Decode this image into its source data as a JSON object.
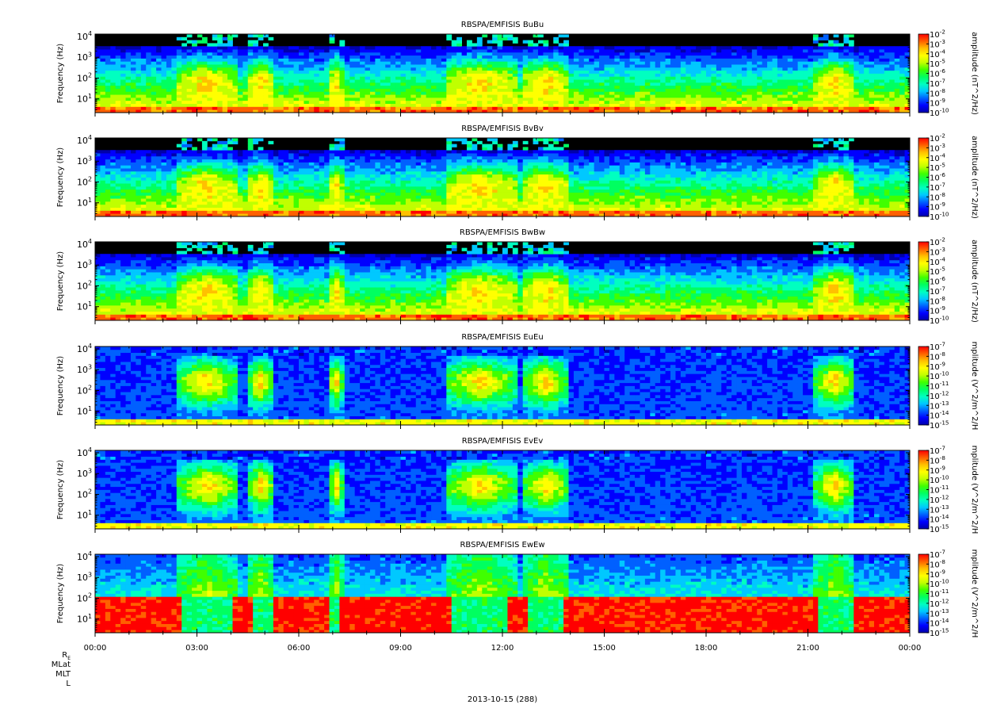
{
  "figure": {
    "footer_labels": [
      "R_E",
      "MLat",
      "MLT",
      "L"
    ],
    "date_label": "2013-10-15 (288)"
  },
  "colors": {
    "colormap": [
      "#0000aa",
      "#0000ff",
      "#0060ff",
      "#00c8ff",
      "#00ffc0",
      "#00ff60",
      "#40ff00",
      "#c0ff00",
      "#ffff00",
      "#ffc000",
      "#ff6000",
      "#ff0000"
    ],
    "background": "#000000"
  },
  "chart_data": [
    {
      "type": "heatmap",
      "title": "RBSPA/EMFISIS  BuBu",
      "ylabel": "Frequency (Hz)",
      "yscale": "log",
      "ylim": [
        2.2,
        13000
      ],
      "yticks": [
        "10^1",
        "10^2",
        "10^3",
        "10^4"
      ],
      "x_ticks": [
        "00:00",
        "03:00",
        "06:00",
        "09:00",
        "12:00",
        "15:00",
        "18:00",
        "21:00",
        "00:00"
      ],
      "colorbar": {
        "label": "amplitude (nT^2/Hz)",
        "scale": "log",
        "ticks": [
          "10^-2",
          "10^-3",
          "10^-4",
          "10^-5",
          "10^-6",
          "10^-7",
          "10^-8",
          "10^-9",
          "10^-10"
        ]
      }
    },
    {
      "type": "heatmap",
      "title": "RBSPA/EMFISIS  BvBv",
      "ylabel": "Frequency (Hz)",
      "yscale": "log",
      "ylim": [
        2.2,
        13000
      ],
      "yticks": [
        "10^1",
        "10^2",
        "10^3",
        "10^4"
      ],
      "x_ticks": [
        "00:00",
        "03:00",
        "06:00",
        "09:00",
        "12:00",
        "15:00",
        "18:00",
        "21:00",
        "00:00"
      ],
      "colorbar": {
        "label": "amplitude (nT^2/Hz)",
        "scale": "log",
        "ticks": [
          "10^-2",
          "10^-3",
          "10^-4",
          "10^-5",
          "10^-6",
          "10^-7",
          "10^-8",
          "10^-9",
          "10^-10"
        ]
      }
    },
    {
      "type": "heatmap",
      "title": "RBSPA/EMFISIS  BwBw",
      "ylabel": "Frequency (Hz)",
      "yscale": "log",
      "ylim": [
        2.2,
        13000
      ],
      "yticks": [
        "10^1",
        "10^2",
        "10^3",
        "10^4"
      ],
      "x_ticks": [
        "00:00",
        "03:00",
        "06:00",
        "09:00",
        "12:00",
        "15:00",
        "18:00",
        "21:00",
        "00:00"
      ],
      "colorbar": {
        "label": "amplitude (nT^2/Hz)",
        "scale": "log",
        "ticks": [
          "10^-2",
          "10^-3",
          "10^-4",
          "10^-5",
          "10^-6",
          "10^-7",
          "10^-8",
          "10^-9",
          "10^-10"
        ]
      }
    },
    {
      "type": "heatmap",
      "title": "RBSPA/EMFISIS  EuEu",
      "ylabel": "Frequency (Hz)",
      "yscale": "log",
      "ylim": [
        2.2,
        13000
      ],
      "yticks": [
        "10^1",
        "10^2",
        "10^3",
        "10^4"
      ],
      "x_ticks": [
        "00:00",
        "03:00",
        "06:00",
        "09:00",
        "12:00",
        "15:00",
        "18:00",
        "21:00",
        "00:00"
      ],
      "colorbar": {
        "label": "mplitude (V^2/m^2/H",
        "scale": "log",
        "ticks": [
          "10^-7",
          "10^-8",
          "10^-9",
          "10^-10",
          "10^-11",
          "10^-12",
          "10^-13",
          "10^-14",
          "10^-15"
        ]
      }
    },
    {
      "type": "heatmap",
      "title": "RBSPA/EMFISIS  EvEv",
      "ylabel": "Frequency (Hz)",
      "yscale": "log",
      "ylim": [
        2.2,
        13000
      ],
      "yticks": [
        "10^1",
        "10^2",
        "10^3",
        "10^4"
      ],
      "x_ticks": [
        "00:00",
        "03:00",
        "06:00",
        "09:00",
        "12:00",
        "15:00",
        "18:00",
        "21:00",
        "00:00"
      ],
      "colorbar": {
        "label": "mplitude (V^2/m^2/H",
        "scale": "log",
        "ticks": [
          "10^-7",
          "10^-8",
          "10^-9",
          "10^-10",
          "10^-11",
          "10^-12",
          "10^-13",
          "10^-14",
          "10^-15"
        ]
      }
    },
    {
      "type": "heatmap",
      "title": "RBSPA/EMFISIS  EwEw",
      "ylabel": "Frequency (Hz)",
      "yscale": "log",
      "ylim": [
        2.2,
        13000
      ],
      "yticks": [
        "10^1",
        "10^2",
        "10^3",
        "10^4"
      ],
      "x_ticks": [
        "00:00",
        "03:00",
        "06:00",
        "09:00",
        "12:00",
        "15:00",
        "18:00",
        "21:00",
        "00:00"
      ],
      "colorbar": {
        "label": "mplitude (V^2/m^2/H",
        "scale": "log",
        "ticks": [
          "10^-7",
          "10^-8",
          "10^-9",
          "10^-10",
          "10^-11",
          "10^-12",
          "10^-13",
          "10^-14",
          "10^-15"
        ]
      }
    }
  ]
}
